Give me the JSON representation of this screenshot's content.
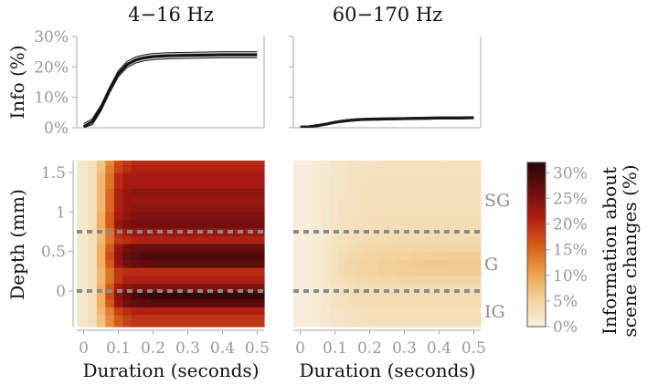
{
  "panels": {
    "left_title": "4−16 Hz",
    "right_title": "60−170 Hz"
  },
  "colorbar": {
    "label_line1": "Information about",
    "label_line2": "scene changes (%)",
    "ticks": [
      0,
      5,
      10,
      15,
      20,
      25,
      30
    ],
    "tick_labels": [
      "0%",
      "5%",
      "10%",
      "15%",
      "20%",
      "25%",
      "30%"
    ],
    "range": [
      0,
      32
    ],
    "colors": [
      "#f7f0e0",
      "#f3d39e",
      "#ec9e47",
      "#d45a16",
      "#ae1c12",
      "#6a0d0d",
      "#2b0505"
    ]
  },
  "layers": {
    "labels": [
      "SG",
      "G",
      "IG"
    ],
    "boundaries_mm": [
      0.75,
      0.0
    ]
  },
  "chart_data": [
    {
      "type": "line",
      "title": "4−16 Hz",
      "xlabel": "",
      "ylabel": "Info (%)",
      "xlim": [
        -0.02,
        0.52
      ],
      "ylim": [
        0,
        30
      ],
      "yticks": [
        0,
        10,
        20,
        30
      ],
      "ytick_labels": [
        "0%",
        "10%",
        "20%",
        "30%"
      ],
      "x": [
        0,
        0.025,
        0.05,
        0.075,
        0.1,
        0.125,
        0.15,
        0.175,
        0.2,
        0.25,
        0.3,
        0.35,
        0.4,
        0.45,
        0.5
      ],
      "series": [
        {
          "values": [
            0.3,
            2.0,
            6.5,
            12.5,
            17.8,
            20.8,
            22.3,
            23.0,
            23.4,
            23.7,
            23.8,
            23.9,
            24.0,
            24.0,
            24.0
          ]
        }
      ],
      "band": 1.0
    },
    {
      "type": "line",
      "title": "60−170 Hz",
      "xlabel": "",
      "ylabel": "",
      "xlim": [
        -0.02,
        0.52
      ],
      "ylim": [
        0,
        30
      ],
      "x": [
        0,
        0.025,
        0.05,
        0.075,
        0.1,
        0.125,
        0.15,
        0.175,
        0.2,
        0.25,
        0.3,
        0.35,
        0.4,
        0.45,
        0.5
      ],
      "series": [
        {
          "values": [
            0.2,
            0.3,
            0.7,
            1.2,
            1.8,
            2.2,
            2.5,
            2.7,
            2.8,
            2.9,
            3.0,
            3.1,
            3.2,
            3.2,
            3.3
          ]
        }
      ],
      "band": 0.35
    },
    {
      "type": "heatmap",
      "title": "4−16 Hz",
      "xlabel": "Duration (seconds)",
      "ylabel": "Depth (mm)",
      "xlim": [
        -0.02,
        0.52
      ],
      "ylim": [
        -0.45,
        1.65
      ],
      "xticks": [
        0,
        0.1,
        0.2,
        0.3,
        0.4,
        0.5
      ],
      "xtick_labels": [
        "0",
        "0.1",
        "0.2",
        "0.3",
        "0.4",
        "0.5"
      ],
      "yticks": [
        0,
        0.5,
        1,
        1.5
      ],
      "ytick_labels": [
        "0",
        "0.5",
        "1",
        "1.5"
      ],
      "x": [
        0,
        0.025,
        0.05,
        0.075,
        0.1,
        0.125,
        0.15,
        0.175,
        0.2,
        0.25,
        0.3,
        0.35,
        0.4,
        0.45,
        0.5
      ],
      "y": [
        -0.35,
        -0.25,
        -0.15,
        -0.05,
        0.05,
        0.15,
        0.25,
        0.35,
        0.45,
        0.55,
        0.65,
        0.75,
        0.85,
        0.95,
        1.05,
        1.15,
        1.25,
        1.35,
        1.45,
        1.55,
        1.65
      ],
      "values": [
        [
          1.5,
          3,
          7,
          12,
          16,
          18,
          19,
          19,
          19,
          19,
          19,
          19,
          19,
          19,
          19
        ],
        [
          1.5,
          3,
          8,
          13,
          18,
          20,
          21,
          21,
          21,
          21,
          21,
          21,
          21,
          21,
          21
        ],
        [
          1.5,
          3,
          9,
          16,
          23,
          26,
          27,
          27.5,
          28,
          28,
          28,
          28,
          28,
          28,
          28
        ],
        [
          1.5,
          3,
          9,
          17,
          24,
          27,
          29,
          30,
          31,
          31,
          31,
          31,
          31,
          31,
          31
        ],
        [
          1.5,
          3,
          9,
          16,
          22,
          24,
          25,
          25,
          25,
          25,
          25,
          25,
          25,
          25,
          25
        ],
        [
          1.5,
          3,
          8,
          14,
          19,
          21,
          21,
          21,
          21,
          21,
          21,
          21,
          21,
          21,
          21
        ],
        [
          1.5,
          3,
          8,
          14,
          19,
          20,
          20,
          20,
          20,
          20,
          20,
          20,
          20,
          20,
          20
        ],
        [
          1.5,
          3,
          9,
          16,
          23,
          26,
          27,
          27.5,
          28,
          28,
          28,
          28,
          28,
          28,
          28
        ],
        [
          1.5,
          3,
          9,
          17,
          24,
          27,
          28,
          29,
          29,
          29,
          29,
          29,
          29,
          29,
          29
        ],
        [
          1.5,
          3,
          9,
          16,
          23,
          26,
          27,
          27,
          27,
          27,
          27,
          27,
          27,
          27,
          27
        ],
        [
          1.5,
          3,
          8,
          14,
          19,
          20,
          21,
          21,
          21,
          21,
          21,
          21,
          21,
          21,
          21
        ],
        [
          1.5,
          3,
          8,
          14,
          20,
          22,
          23,
          23,
          23,
          23,
          23,
          23,
          23,
          23,
          23
        ],
        [
          1.5,
          3,
          9,
          16,
          23,
          25,
          26,
          26,
          26,
          26,
          26,
          26,
          26,
          26,
          26
        ],
        [
          1.5,
          3,
          9,
          16,
          22,
          24,
          25,
          25,
          25,
          25,
          25,
          25,
          25,
          25,
          25
        ],
        [
          1.5,
          3,
          8,
          15,
          21,
          23,
          24,
          24,
          24,
          24,
          24,
          24,
          24,
          24,
          24
        ],
        [
          1.5,
          3,
          8,
          15,
          21,
          23,
          23,
          23,
          23,
          23,
          23,
          23,
          23,
          23,
          23
        ],
        [
          1.5,
          3,
          8,
          15,
          21,
          23,
          24,
          24,
          24,
          24,
          24,
          24,
          24,
          24,
          24
        ],
        [
          1.5,
          3,
          8,
          14,
          20,
          22,
          22,
          22,
          22,
          22,
          22,
          22,
          22,
          22,
          22
        ],
        [
          1.5,
          3,
          8,
          14,
          20,
          22,
          22,
          22,
          22,
          22,
          22,
          22,
          22,
          22,
          22
        ],
        [
          1.5,
          3,
          7,
          13,
          18,
          20,
          21,
          21,
          21,
          21,
          21,
          21,
          21,
          21,
          21
        ],
        [
          1.5,
          3,
          7,
          12,
          17,
          19,
          20,
          20,
          20,
          20,
          20,
          20,
          20,
          20,
          20
        ]
      ]
    },
    {
      "type": "heatmap",
      "title": "60−170 Hz",
      "xlabel": "Duration (seconds)",
      "ylabel": "",
      "xlim": [
        -0.02,
        0.52
      ],
      "ylim": [
        -0.45,
        1.65
      ],
      "xticks": [
        0,
        0.1,
        0.2,
        0.3,
        0.4,
        0.5
      ],
      "xtick_labels": [
        "0",
        "0.1",
        "0.2",
        "0.3",
        "0.4",
        "0.5"
      ],
      "x": [
        0,
        0.025,
        0.05,
        0.075,
        0.1,
        0.125,
        0.15,
        0.175,
        0.2,
        0.25,
        0.3,
        0.35,
        0.4,
        0.45,
        0.5
      ],
      "y": [
        -0.35,
        -0.25,
        -0.15,
        -0.05,
        0.05,
        0.15,
        0.25,
        0.35,
        0.45,
        0.55,
        0.65,
        0.75,
        0.85,
        0.95,
        1.05,
        1.15,
        1.25,
        1.35,
        1.45,
        1.55,
        1.65
      ],
      "values": [
        [
          0.5,
          0.6,
          0.8,
          1.2,
          1.8,
          2.3,
          2.6,
          2.8,
          2.9,
          3.0,
          3.0,
          3.0,
          3.0,
          3.0,
          3.0
        ],
        [
          0.5,
          0.6,
          0.9,
          1.3,
          2.0,
          2.5,
          2.8,
          3.0,
          3.1,
          3.2,
          3.2,
          3.2,
          3.2,
          3.2,
          3.2
        ],
        [
          0.5,
          0.6,
          0.9,
          1.5,
          2.3,
          2.9,
          3.2,
          3.4,
          3.5,
          3.6,
          3.6,
          3.6,
          3.6,
          3.6,
          3.6
        ],
        [
          0.5,
          0.6,
          0.9,
          1.5,
          2.4,
          3.0,
          3.3,
          3.5,
          3.6,
          3.7,
          3.7,
          3.7,
          3.7,
          3.7,
          3.7
        ],
        [
          0.5,
          0.6,
          0.9,
          1.4,
          2.2,
          2.8,
          3.1,
          3.3,
          3.4,
          3.5,
          3.5,
          3.5,
          3.5,
          3.5,
          3.5
        ],
        [
          0.5,
          0.6,
          1.0,
          1.7,
          2.7,
          3.4,
          3.9,
          4.2,
          4.4,
          4.6,
          4.7,
          4.8,
          4.8,
          4.8,
          4.8
        ],
        [
          0.5,
          0.6,
          1.0,
          1.8,
          3.0,
          3.9,
          4.5,
          4.9,
          5.2,
          5.5,
          5.7,
          5.9,
          6.0,
          6.1,
          6.1
        ],
        [
          0.5,
          0.6,
          1.0,
          1.8,
          3.0,
          4.0,
          4.6,
          5.0,
          5.3,
          5.6,
          5.9,
          6.1,
          6.2,
          6.3,
          6.3
        ],
        [
          0.5,
          0.6,
          1.0,
          1.7,
          2.8,
          3.7,
          4.2,
          4.6,
          4.9,
          5.2,
          5.4,
          5.6,
          5.7,
          5.8,
          5.8
        ],
        [
          0.5,
          0.6,
          0.9,
          1.6,
          2.6,
          3.3,
          3.8,
          4.1,
          4.3,
          4.5,
          4.6,
          4.7,
          4.7,
          4.7,
          4.7
        ],
        [
          0.5,
          0.6,
          0.9,
          1.5,
          2.4,
          3.0,
          3.4,
          3.6,
          3.8,
          3.9,
          4.0,
          4.0,
          4.0,
          4.0,
          4.0
        ],
        [
          0.5,
          0.6,
          0.9,
          1.4,
          2.2,
          2.8,
          3.1,
          3.3,
          3.4,
          3.5,
          3.5,
          3.5,
          3.5,
          3.5,
          3.5
        ],
        [
          0.5,
          0.6,
          0.9,
          1.4,
          2.2,
          2.7,
          3.0,
          3.2,
          3.3,
          3.4,
          3.4,
          3.4,
          3.4,
          3.4,
          3.4
        ],
        [
          0.5,
          0.6,
          0.8,
          1.3,
          2.0,
          2.5,
          2.8,
          3.0,
          3.1,
          3.2,
          3.2,
          3.2,
          3.2,
          3.2,
          3.2
        ],
        [
          0.5,
          0.6,
          0.8,
          1.3,
          2.0,
          2.5,
          2.8,
          3.0,
          3.1,
          3.2,
          3.2,
          3.2,
          3.2,
          3.2,
          3.2
        ],
        [
          0.5,
          0.6,
          0.8,
          1.3,
          2.0,
          2.5,
          2.8,
          3.0,
          3.1,
          3.2,
          3.2,
          3.2,
          3.2,
          3.2,
          3.2
        ],
        [
          0.5,
          0.6,
          0.8,
          1.2,
          1.9,
          2.4,
          2.7,
          2.9,
          3.0,
          3.1,
          3.1,
          3.1,
          3.1,
          3.1,
          3.1
        ],
        [
          0.5,
          0.6,
          0.8,
          1.2,
          1.9,
          2.4,
          2.7,
          2.9,
          3.0,
          3.1,
          3.1,
          3.1,
          3.1,
          3.1,
          3.1
        ],
        [
          0.5,
          0.6,
          0.8,
          1.2,
          1.8,
          2.3,
          2.6,
          2.8,
          2.9,
          3.0,
          3.0,
          3.0,
          3.0,
          3.0,
          3.0
        ],
        [
          0.5,
          0.6,
          0.8,
          1.1,
          1.7,
          2.1,
          2.4,
          2.6,
          2.7,
          2.8,
          2.8,
          2.8,
          2.8,
          2.8,
          2.8
        ],
        [
          0.5,
          0.6,
          0.8,
          1.1,
          1.6,
          2.0,
          2.3,
          2.5,
          2.6,
          2.7,
          2.7,
          2.7,
          2.7,
          2.7,
          2.7
        ]
      ]
    }
  ]
}
